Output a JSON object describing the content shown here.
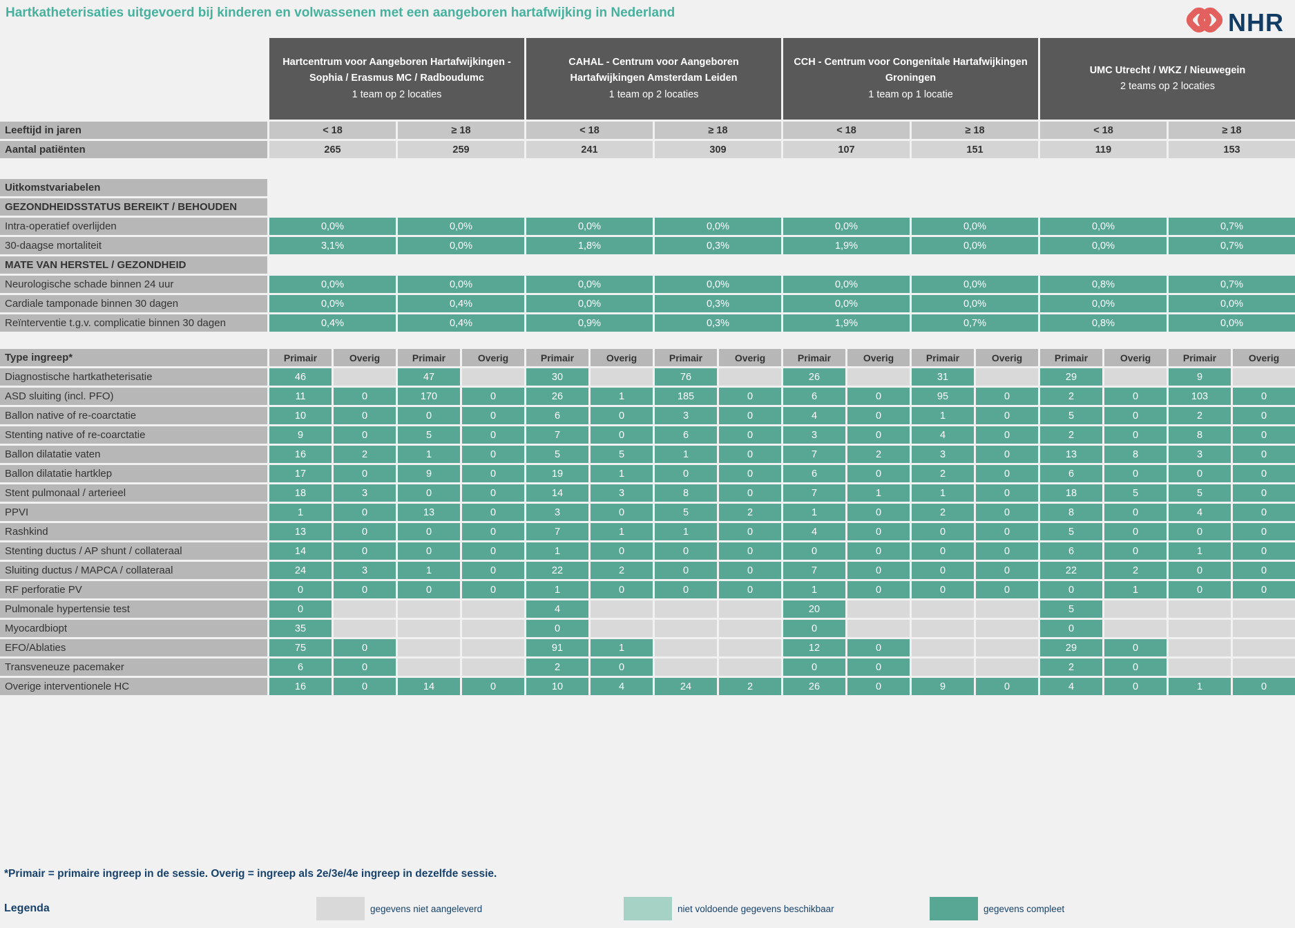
{
  "title": "Hartkatheterisaties uitgevoerd bij kinderen en volwassenen met een aangeboren hartafwijking in Nederland",
  "logo": {
    "text": "NHR",
    "icon_color": "#e2615e",
    "text_color": "#123c63"
  },
  "colors": {
    "complete": "#58a794",
    "insufficient": "#a5d2c4",
    "not_supplied": "#d9d9d9",
    "header_dark": "#595959",
    "label_gray": "#b7b7b7",
    "title_teal": "#46b29d",
    "navy": "#17426b"
  },
  "centers": [
    {
      "name": "Hartcentrum voor Aangeboren Hartafwijkingen - Sophia / Erasmus MC / Radboudumc",
      "subtitle": "1 team op 2 locaties",
      "ages": [
        "< 18",
        "≥ 18"
      ]
    },
    {
      "name": "CAHAL - Centrum voor Aangeboren Hartafwijkingen Amsterdam Leiden",
      "subtitle": "1 team op 2 locaties",
      "ages": [
        "< 18",
        "≥ 18"
      ]
    },
    {
      "name": "CCH - Centrum voor Congenitale Hartafwijkingen Groningen",
      "subtitle": "1 team op 1 locatie",
      "ages": [
        "< 18",
        "≥ 18"
      ]
    },
    {
      "name": "UMC Utrecht / WKZ / Nieuwegein",
      "subtitle": "2 teams op 2 locaties",
      "ages": [
        "< 18",
        "≥ 18"
      ]
    }
  ],
  "age_row": {
    "label": "Leeftijd in jaren"
  },
  "patients_row": {
    "label": "Aantal patiënten",
    "values": [
      "265",
      "259",
      "241",
      "309",
      "107",
      "151",
      "119",
      "153"
    ]
  },
  "outcomes": {
    "section_title": "Uitkomstvariabelen",
    "groups": [
      {
        "header": "GEZONDHEIDSSTATUS BEREIKT / BEHOUDEN",
        "rows": [
          {
            "label": "Intra-operatief overlijden",
            "values": [
              "0,0%",
              "0,0%",
              "0,0%",
              "0,0%",
              "0,0%",
              "0,0%",
              "0,0%",
              "0,7%"
            ]
          },
          {
            "label": "30-daagse mortaliteit",
            "values": [
              "3,1%",
              "0,0%",
              "1,8%",
              "0,3%",
              "1,9%",
              "0,0%",
              "0,0%",
              "0,7%"
            ]
          }
        ]
      },
      {
        "header": "MATE VAN HERSTEL / GEZONDHEID",
        "rows": [
          {
            "label": "Neurologische schade binnen 24 uur",
            "values": [
              "0,0%",
              "0,0%",
              "0,0%",
              "0,0%",
              "0,0%",
              "0,0%",
              "0,8%",
              "0,7%"
            ]
          },
          {
            "label": "Cardiale tamponade binnen 30 dagen",
            "values": [
              "0,0%",
              "0,4%",
              "0,0%",
              "0,3%",
              "0,0%",
              "0,0%",
              "0,0%",
              "0,0%"
            ]
          },
          {
            "label": "Reïnterventie t.g.v. complicatie binnen 30 dagen",
            "values": [
              "0,4%",
              "0,4%",
              "0,9%",
              "0,3%",
              "1,9%",
              "0,7%",
              "0,8%",
              "0,0%"
            ]
          }
        ]
      }
    ]
  },
  "procedures": {
    "header": "Type ingreep*",
    "subcolumns": [
      "Primair",
      "Overig"
    ],
    "rows": [
      {
        "label": "Diagnostische hartkatheterisatie",
        "values": [
          46,
          null,
          47,
          null,
          30,
          null,
          76,
          null,
          26,
          null,
          31,
          null,
          29,
          null,
          9,
          null
        ]
      },
      {
        "label": "ASD sluiting (incl. PFO)",
        "values": [
          11,
          0,
          170,
          0,
          26,
          1,
          185,
          0,
          6,
          0,
          95,
          0,
          2,
          0,
          103,
          0
        ]
      },
      {
        "label": "Ballon native of re-coarctatie",
        "values": [
          10,
          0,
          0,
          0,
          6,
          0,
          3,
          0,
          4,
          0,
          1,
          0,
          5,
          0,
          2,
          0
        ]
      },
      {
        "label": "Stenting native of re-coarctatie",
        "values": [
          9,
          0,
          5,
          0,
          7,
          0,
          6,
          0,
          3,
          0,
          4,
          0,
          2,
          0,
          8,
          0
        ]
      },
      {
        "label": "Ballon dilatatie vaten",
        "values": [
          16,
          2,
          1,
          0,
          5,
          5,
          1,
          0,
          7,
          2,
          3,
          0,
          13,
          8,
          3,
          0
        ]
      },
      {
        "label": "Ballon dilatatie hartklep",
        "values": [
          17,
          0,
          9,
          0,
          19,
          1,
          0,
          0,
          6,
          0,
          2,
          0,
          6,
          0,
          0,
          0
        ]
      },
      {
        "label": "Stent pulmonaal / arterieel",
        "values": [
          18,
          3,
          0,
          0,
          14,
          3,
          8,
          0,
          7,
          1,
          1,
          0,
          18,
          5,
          5,
          0
        ]
      },
      {
        "label": "PPVI",
        "values": [
          1,
          0,
          13,
          0,
          3,
          0,
          5,
          2,
          1,
          0,
          2,
          0,
          8,
          0,
          4,
          0
        ]
      },
      {
        "label": "Rashkind",
        "values": [
          13,
          0,
          0,
          0,
          7,
          1,
          1,
          0,
          4,
          0,
          0,
          0,
          5,
          0,
          0,
          0
        ]
      },
      {
        "label": "Stenting ductus / AP shunt / collateraal",
        "values": [
          14,
          0,
          0,
          0,
          1,
          0,
          0,
          0,
          0,
          0,
          0,
          0,
          6,
          0,
          1,
          0
        ]
      },
      {
        "label": "Sluiting ductus / MAPCA / collateraal",
        "values": [
          24,
          3,
          1,
          0,
          22,
          2,
          0,
          0,
          7,
          0,
          0,
          0,
          22,
          2,
          0,
          0
        ]
      },
      {
        "label": "RF perforatie PV",
        "values": [
          0,
          0,
          0,
          0,
          1,
          0,
          0,
          0,
          1,
          0,
          0,
          0,
          0,
          1,
          0,
          0
        ]
      },
      {
        "label": "Pulmonale hypertensie test",
        "values": [
          0,
          null,
          null,
          null,
          4,
          null,
          null,
          null,
          20,
          null,
          null,
          null,
          5,
          null,
          null,
          null
        ]
      },
      {
        "label": "Myocardbiopt",
        "values": [
          35,
          null,
          null,
          null,
          0,
          null,
          null,
          null,
          0,
          null,
          null,
          null,
          0,
          null,
          null,
          null
        ]
      },
      {
        "label": "EFO/Ablaties",
        "values": [
          75,
          0,
          null,
          null,
          91,
          1,
          null,
          null,
          12,
          0,
          null,
          null,
          29,
          0,
          null,
          null
        ]
      },
      {
        "label": "Transveneuze pacemaker",
        "values": [
          6,
          0,
          null,
          null,
          2,
          0,
          null,
          null,
          0,
          0,
          null,
          null,
          2,
          0,
          null,
          null
        ]
      },
      {
        "label": "Overige interventionele HC",
        "values": [
          16,
          0,
          14,
          0,
          10,
          4,
          24,
          2,
          26,
          0,
          9,
          0,
          4,
          0,
          1,
          0
        ]
      }
    ]
  },
  "footnote": "*Primair = primaire ingreep in de sessie. Overig = ingreep als 2e/3e/4e ingreep in dezelfde sessie.",
  "legend": {
    "title": "Legenda",
    "items": [
      {
        "label": "gegevens niet aangeleverd",
        "color": "#d9d9d9"
      },
      {
        "label": "niet voldoende gegevens beschikbaar",
        "color": "#a5d2c4"
      },
      {
        "label": "gegevens compleet",
        "color": "#58a794"
      }
    ]
  }
}
